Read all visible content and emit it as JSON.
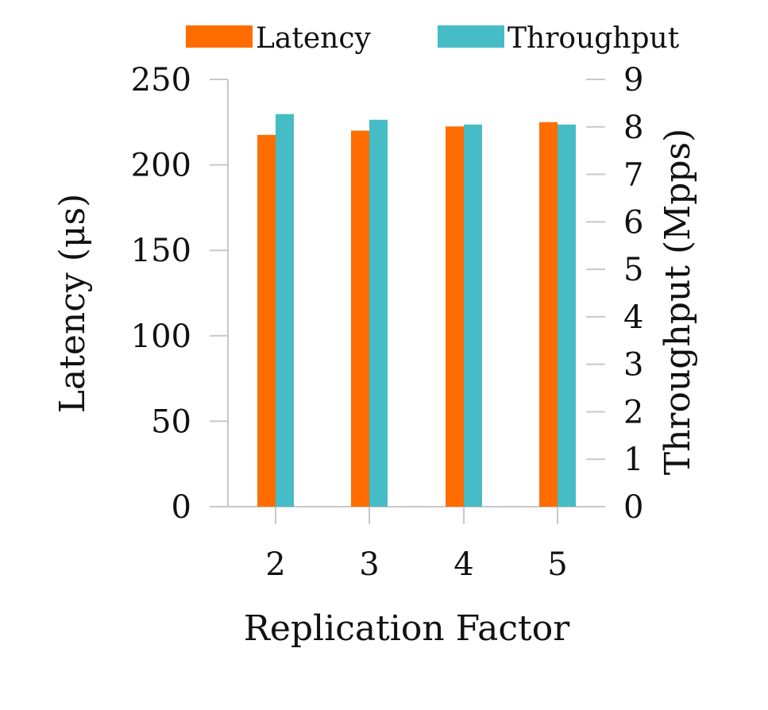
{
  "chart_data": {
    "type": "bar",
    "categories": [
      "2",
      "3",
      "4",
      "5"
    ],
    "series": [
      {
        "name": "Latency",
        "axis": "left",
        "color": "#ff6d00",
        "values": [
          217.5,
          220,
          222.5,
          225
        ]
      },
      {
        "name": "Throughput",
        "axis": "right",
        "color": "#45bcc6",
        "values": [
          8.27,
          8.15,
          8.05,
          8.05
        ]
      }
    ],
    "xlabel": "Replication Factor",
    "ylabel_left": "Latency (μs)",
    "ylabel_right": "Throughput (Mpps)",
    "ylim_left": [
      0,
      250
    ],
    "ylim_right": [
      0,
      9
    ],
    "yticks_left": [
      "0",
      "50",
      "100",
      "150",
      "200",
      "250"
    ],
    "yticks_right": [
      "0",
      "1",
      "2",
      "3",
      "4",
      "5",
      "6",
      "7",
      "8",
      "9"
    ],
    "legend_position": "top",
    "grid": false
  }
}
